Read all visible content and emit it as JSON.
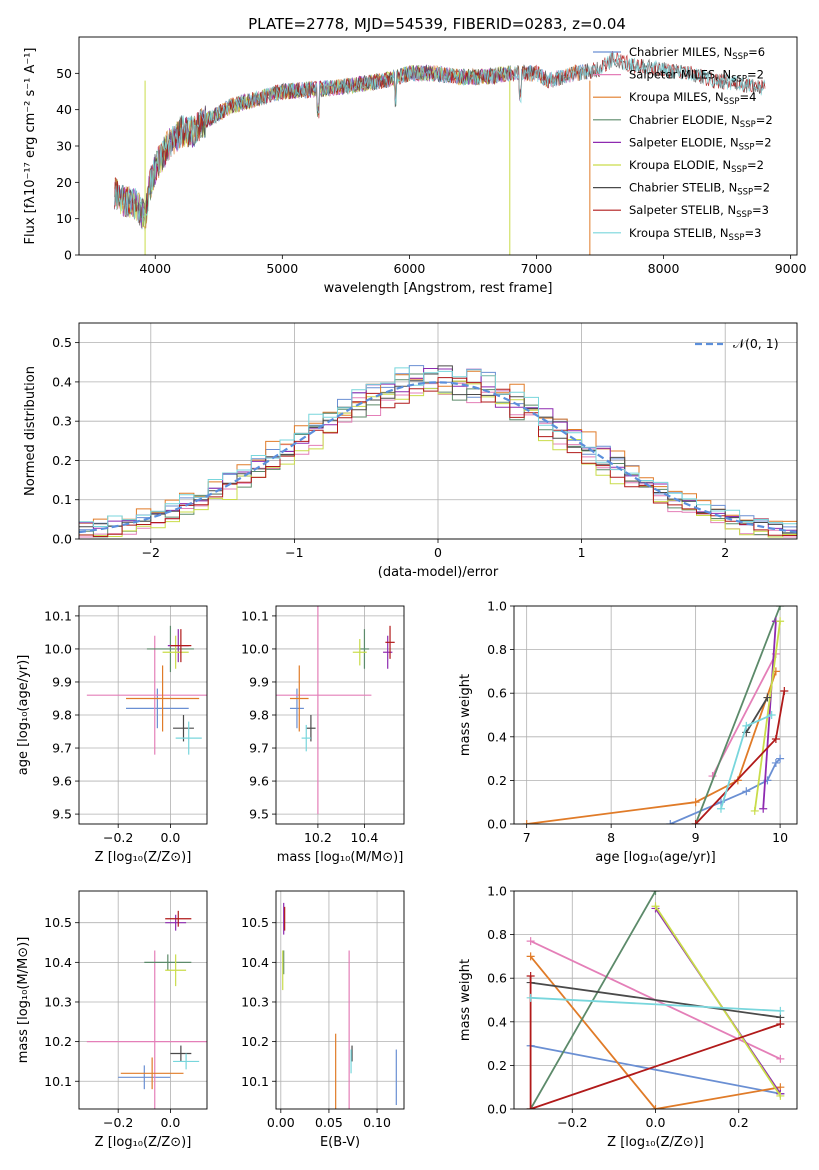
{
  "figure_title": "PLATE=2778, MJD=54539, FIBERID=0283, z=0.04",
  "colors": {
    "Chabrier MILES": "#6a8fd3",
    "Salpeter MILES": "#e47fb8",
    "Kroupa MILES": "#e07b28",
    "Chabrier ELODIE": "#5c8a6a",
    "Salpeter ELODIE": "#8e2ab0",
    "Kroupa ELODIE": "#c9dc4a",
    "Chabrier STELIB": "#4a4a4a",
    "Salpeter STELIB": "#b11a1a",
    "Kroupa STELIB": "#78d6dc"
  },
  "chart_data": [
    {
      "id": "spectrum",
      "type": "line",
      "title": "PLATE=2778, MJD=54539, FIBERID=0283, z=0.04",
      "xlabel": "wavelength [Angstrom, rest frame]",
      "ylabel": "Flux [fλ10⁻¹⁷ erg cm⁻² s⁻¹ A⁻¹]",
      "xlim": [
        3400,
        9050
      ],
      "ylim": [
        0,
        60
      ],
      "xticks": [
        4000,
        5000,
        6000,
        7000,
        8000,
        9000
      ],
      "yticks": [
        0,
        10,
        20,
        30,
        40,
        50
      ],
      "grid": false,
      "legend_position": "top-right",
      "legend": [
        {
          "label": "Chabrier MILES, N_SSP=6",
          "series": "Chabrier MILES"
        },
        {
          "label": "Salpeter MILES, N_SSP=2",
          "series": "Salpeter MILES"
        },
        {
          "label": "Kroupa MILES, N_SSP=4",
          "series": "Kroupa MILES"
        },
        {
          "label": "Chabrier ELODIE, N_SSP=2",
          "series": "Chabrier ELODIE"
        },
        {
          "label": "Salpeter ELODIE, N_SSP=2",
          "series": "Salpeter ELODIE"
        },
        {
          "label": "Kroupa ELODIE, N_SSP=2",
          "series": "Kroupa ELODIE"
        },
        {
          "label": "Chabrier STELIB, N_SSP=2",
          "series": "Chabrier STELIB"
        },
        {
          "label": "Salpeter STELIB, N_SSP=3",
          "series": "Salpeter STELIB"
        },
        {
          "label": "Kroupa STELIB, N_SSP=3",
          "series": "Kroupa STELIB"
        }
      ],
      "spectrum_shape": [
        [
          3680,
          17
        ],
        [
          3750,
          15
        ],
        [
          3850,
          14
        ],
        [
          3920,
          10
        ],
        [
          3950,
          18
        ],
        [
          4000,
          24
        ],
        [
          4100,
          30
        ],
        [
          4200,
          34
        ],
        [
          4300,
          34
        ],
        [
          4400,
          37
        ],
        [
          4600,
          41
        ],
        [
          4800,
          43
        ],
        [
          5000,
          45
        ],
        [
          5200,
          45.5
        ],
        [
          5400,
          46
        ],
        [
          5600,
          47
        ],
        [
          5800,
          48
        ],
        [
          6000,
          50
        ],
        [
          6200,
          50
        ],
        [
          6400,
          49
        ],
        [
          6600,
          49
        ],
        [
          6800,
          50
        ],
        [
          7000,
          50
        ],
        [
          7100,
          48
        ],
        [
          7300,
          50
        ],
        [
          7500,
          51
        ],
        [
          7600,
          54
        ],
        [
          7800,
          52
        ],
        [
          8000,
          51
        ],
        [
          8200,
          50
        ],
        [
          8400,
          48
        ],
        [
          8600,
          47
        ],
        [
          8800,
          46
        ]
      ],
      "spectrum_series_xmax": {
        "Chabrier MILES": 7400,
        "Salpeter MILES": 7400,
        "Kroupa MILES": 7400,
        "Chabrier ELODIE": 6800,
        "Salpeter ELODIE": 6800,
        "Kroupa ELODIE": 6800,
        "Chabrier STELIB": 8800,
        "Salpeter STELIB": 8800,
        "Kroupa STELIB": 8800
      },
      "drop_lines": [
        {
          "x": 3920,
          "series": "Kroupa ELODIE"
        },
        {
          "x": 6790,
          "series": "Kroupa ELODIE"
        },
        {
          "x": 7420,
          "series": "Kroupa MILES"
        }
      ]
    },
    {
      "id": "residuals",
      "type": "histogram",
      "xlabel": "(data-model)/error",
      "ylabel": "Normed distribution",
      "xlim": [
        -2.5,
        2.5
      ],
      "ylim": [
        0,
        0.55
      ],
      "xticks": [
        -2,
        -1,
        0,
        1,
        2
      ],
      "yticks": [
        0.0,
        0.1,
        0.2,
        0.3,
        0.4,
        0.5
      ],
      "grid": true,
      "legend_position": "top-right",
      "legend_label": "𝒩(0, 1)",
      "reference_curve": "normal pdf, mean 0, sigma 1",
      "bin_width": 0.1,
      "bin_start": -2.5,
      "series_offsets": [
        0.012,
        -0.015,
        0.02,
        -0.008,
        0.01,
        -0.02,
        0.005,
        -0.01,
        0.015
      ]
    },
    {
      "id": "age-vs-Z",
      "type": "scatter",
      "xlabel": "Z [log₁₀(Z/Z⊙)]",
      "ylabel": "age [log₁₀(age/yr)]",
      "xlim": [
        -0.35,
        0.14
      ],
      "ylim": [
        9.47,
        10.13
      ],
      "xticks": [
        -0.2,
        0.0
      ],
      "yticks": [
        9.5,
        9.6,
        9.7,
        9.8,
        9.9,
        10.0,
        10.1
      ],
      "grid": true,
      "points": [
        {
          "series": "Chabrier MILES",
          "x": -0.05,
          "y": 9.82,
          "xerr": 0.12,
          "yerr": 0.06
        },
        {
          "series": "Salpeter MILES",
          "x": -0.06,
          "y": 9.86,
          "xerr": 0.26,
          "yerr": 0.18
        },
        {
          "series": "Kroupa MILES",
          "x": -0.03,
          "y": 9.85,
          "xerr": 0.14,
          "yerr": 0.1
        },
        {
          "series": "Chabrier ELODIE",
          "x": 0.0,
          "y": 10.0,
          "xerr": 0.09,
          "yerr": 0.07
        },
        {
          "series": "Salpeter ELODIE",
          "x": 0.03,
          "y": 10.01,
          "xerr": 0.04,
          "yerr": 0.05
        },
        {
          "series": "Kroupa ELODIE",
          "x": 0.02,
          "y": 9.99,
          "xerr": 0.05,
          "yerr": 0.05
        },
        {
          "series": "Chabrier STELIB",
          "x": 0.05,
          "y": 9.76,
          "xerr": 0.04,
          "yerr": 0.04
        },
        {
          "series": "Salpeter STELIB",
          "x": 0.04,
          "y": 10.01,
          "xerr": 0.04,
          "yerr": 0.05
        },
        {
          "series": "Kroupa STELIB",
          "x": 0.07,
          "y": 9.73,
          "xerr": 0.05,
          "yerr": 0.05
        }
      ]
    },
    {
      "id": "age-vs-mass",
      "type": "scatter",
      "xlabel": "mass [log₁₀(M/M⊙)]",
      "ylabel": "",
      "xlim": [
        10.02,
        10.57
      ],
      "ylim": [
        9.47,
        10.13
      ],
      "xticks": [
        10.2,
        10.4
      ],
      "yticks": [
        9.5,
        9.6,
        9.7,
        9.8,
        9.9,
        10.0,
        10.1
      ],
      "grid": true,
      "points": [
        {
          "series": "Chabrier MILES",
          "x": 10.11,
          "y": 9.82,
          "xerr": 0.03,
          "yerr": 0.06
        },
        {
          "series": "Salpeter MILES",
          "x": 10.2,
          "y": 9.86,
          "xerr": 0.23,
          "yerr": 0.36
        },
        {
          "series": "Kroupa MILES",
          "x": 10.12,
          "y": 9.85,
          "xerr": 0.04,
          "yerr": 0.1
        },
        {
          "series": "Chabrier ELODIE",
          "x": 10.4,
          "y": 10.0,
          "xerr": 0.02,
          "yerr": 0.06
        },
        {
          "series": "Salpeter ELODIE",
          "x": 10.5,
          "y": 9.99,
          "xerr": 0.02,
          "yerr": 0.05
        },
        {
          "series": "Kroupa ELODIE",
          "x": 10.38,
          "y": 9.99,
          "xerr": 0.03,
          "yerr": 0.04
        },
        {
          "series": "Chabrier STELIB",
          "x": 10.17,
          "y": 9.76,
          "xerr": 0.02,
          "yerr": 0.04
        },
        {
          "series": "Salpeter STELIB",
          "x": 10.51,
          "y": 10.02,
          "xerr": 0.02,
          "yerr": 0.05
        },
        {
          "series": "Kroupa STELIB",
          "x": 10.15,
          "y": 9.73,
          "xerr": 0.02,
          "yerr": 0.04
        }
      ]
    },
    {
      "id": "weight-vs-age",
      "type": "line",
      "xlabel": "age [log₁₀(age/yr)]",
      "ylabel": "mass weight",
      "xlim": [
        6.85,
        10.2
      ],
      "ylim": [
        0,
        1
      ],
      "xticks": [
        7,
        8,
        9,
        10
      ],
      "yticks": [
        0.0,
        0.2,
        0.4,
        0.6,
        0.8,
        1.0
      ],
      "grid": true,
      "series": [
        {
          "series": "Chabrier MILES",
          "points": [
            [
              8.7,
              0.0
            ],
            [
              9.3,
              0.1
            ],
            [
              9.6,
              0.15
            ],
            [
              9.85,
              0.2
            ],
            [
              9.95,
              0.28
            ],
            [
              10.0,
              0.3
            ]
          ]
        },
        {
          "series": "Salpeter MILES",
          "points": [
            [
              9.2,
              0.22
            ],
            [
              9.95,
              0.78
            ]
          ]
        },
        {
          "series": "Kroupa MILES",
          "points": [
            [
              7.0,
              0.0
            ],
            [
              9.0,
              0.1
            ],
            [
              9.5,
              0.2
            ],
            [
              9.95,
              0.7
            ]
          ]
        },
        {
          "series": "Chabrier ELODIE",
          "points": [
            [
              9.0,
              0.0
            ],
            [
              10.0,
              1.0
            ]
          ]
        },
        {
          "series": "Salpeter ELODIE",
          "points": [
            [
              9.8,
              0.07
            ],
            [
              9.95,
              0.93
            ]
          ]
        },
        {
          "series": "Kroupa ELODIE",
          "points": [
            [
              9.7,
              0.06
            ],
            [
              10.0,
              0.93
            ]
          ]
        },
        {
          "series": "Chabrier STELIB",
          "points": [
            [
              9.6,
              0.42
            ],
            [
              9.85,
              0.58
            ]
          ]
        },
        {
          "series": "Salpeter STELIB",
          "points": [
            [
              9.0,
              0.0
            ],
            [
              9.95,
              0.39
            ],
            [
              10.05,
              0.61
            ]
          ]
        },
        {
          "series": "Kroupa STELIB",
          "points": [
            [
              9.3,
              0.07
            ],
            [
              9.6,
              0.45
            ],
            [
              9.9,
              0.5
            ]
          ]
        }
      ]
    },
    {
      "id": "mass-vs-Z",
      "type": "scatter",
      "xlabel": "Z [log₁₀(Z/Z⊙)]",
      "ylabel": "mass [log₁₀(M/M⊙)]",
      "xlim": [
        -0.35,
        0.14
      ],
      "ylim": [
        10.03,
        10.58
      ],
      "xticks": [
        -0.2,
        0.0
      ],
      "yticks": [
        10.1,
        10.2,
        10.3,
        10.4,
        10.5
      ],
      "grid": true,
      "points": [
        {
          "series": "Chabrier MILES",
          "x": -0.1,
          "y": 10.11,
          "xerr": 0.1,
          "yerr": 0.03
        },
        {
          "series": "Salpeter MILES",
          "x": -0.06,
          "y": 10.2,
          "xerr": 0.26,
          "yerr": 0.23
        },
        {
          "series": "Kroupa MILES",
          "x": -0.07,
          "y": 10.12,
          "xerr": 0.12,
          "yerr": 0.04
        },
        {
          "series": "Chabrier ELODIE",
          "x": -0.01,
          "y": 10.4,
          "xerr": 0.09,
          "yerr": 0.02
        },
        {
          "series": "Salpeter ELODIE",
          "x": 0.02,
          "y": 10.5,
          "xerr": 0.04,
          "yerr": 0.02
        },
        {
          "series": "Kroupa ELODIE",
          "x": 0.02,
          "y": 10.38,
          "xerr": 0.04,
          "yerr": 0.04
        },
        {
          "series": "Chabrier STELIB",
          "x": 0.04,
          "y": 10.17,
          "xerr": 0.04,
          "yerr": 0.02
        },
        {
          "series": "Salpeter STELIB",
          "x": 0.03,
          "y": 10.51,
          "xerr": 0.05,
          "yerr": 0.02
        },
        {
          "series": "Kroupa STELIB",
          "x": 0.06,
          "y": 10.15,
          "xerr": 0.05,
          "yerr": 0.02
        }
      ]
    },
    {
      "id": "mass-vs-ebv",
      "type": "scatter",
      "xlabel": "E(B-V)",
      "ylabel": "",
      "xlim": [
        -0.005,
        0.128
      ],
      "ylim": [
        10.03,
        10.58
      ],
      "xticks": [
        0.0,
        0.05,
        0.1
      ],
      "yticks": [
        10.1,
        10.2,
        10.3,
        10.4,
        10.5
      ],
      "grid": true,
      "points": [
        {
          "series": "Chabrier MILES",
          "x": 0.12,
          "y": 10.11,
          "xerr": 0.0,
          "yerr": 0.07
        },
        {
          "series": "Salpeter MILES",
          "x": 0.071,
          "y": 10.2,
          "xerr": 0.0,
          "yerr": 0.23
        },
        {
          "series": "Kroupa MILES",
          "x": 0.057,
          "y": 10.12,
          "xerr": 0.0,
          "yerr": 0.1
        },
        {
          "series": "Chabrier ELODIE",
          "x": 0.003,
          "y": 10.4,
          "xerr": 0.0,
          "yerr": 0.03
        },
        {
          "series": "Salpeter ELODIE",
          "x": 0.003,
          "y": 10.51,
          "xerr": 0.0,
          "yerr": 0.04
        },
        {
          "series": "Kroupa ELODIE",
          "x": 0.002,
          "y": 10.38,
          "xerr": 0.0,
          "yerr": 0.05
        },
        {
          "series": "Chabrier STELIB",
          "x": 0.074,
          "y": 10.17,
          "xerr": 0.0,
          "yerr": 0.02
        },
        {
          "series": "Salpeter STELIB",
          "x": 0.004,
          "y": 10.51,
          "xerr": 0.0,
          "yerr": 0.03
        },
        {
          "series": "Kroupa STELIB",
          "x": 0.073,
          "y": 10.15,
          "xerr": 0.0,
          "yerr": 0.03
        }
      ]
    },
    {
      "id": "weight-vs-Z",
      "type": "line",
      "xlabel": "Z [log₁₀(Z/Z⊙)]",
      "ylabel": "mass weight",
      "xlim": [
        -0.34,
        0.34
      ],
      "ylim": [
        0,
        1
      ],
      "xticks": [
        -0.2,
        0.0,
        0.2
      ],
      "yticks": [
        0.0,
        0.2,
        0.4,
        0.6,
        0.8,
        1.0
      ],
      "grid": true,
      "series": [
        {
          "series": "Chabrier MILES",
          "points": [
            [
              -0.3,
              0.29
            ],
            [
              0.3,
              0.07
            ]
          ]
        },
        {
          "series": "Salpeter MILES",
          "points": [
            [
              -0.3,
              0.77
            ],
            [
              0.3,
              0.23
            ]
          ]
        },
        {
          "series": "Kroupa MILES",
          "points": [
            [
              -0.3,
              0.7
            ],
            [
              0.0,
              0.0
            ],
            [
              0.3,
              0.1
            ]
          ]
        },
        {
          "series": "Chabrier ELODIE",
          "points": [
            [
              -0.3,
              0.0
            ],
            [
              0.0,
              1.0
            ]
          ]
        },
        {
          "series": "Salpeter ELODIE",
          "points": [
            [
              0.0,
              0.92
            ],
            [
              0.3,
              0.07
            ]
          ]
        },
        {
          "series": "Kroupa ELODIE",
          "points": [
            [
              0.0,
              0.93
            ],
            [
              0.3,
              0.06
            ]
          ]
        },
        {
          "series": "Chabrier STELIB",
          "points": [
            [
              -0.3,
              0.58
            ],
            [
              0.3,
              0.42
            ]
          ]
        },
        {
          "series": "Salpeter STELIB",
          "points": [
            [
              -0.3,
              0.61
            ],
            [
              -0.3,
              0.0
            ],
            [
              0.3,
              0.39
            ]
          ]
        },
        {
          "series": "Kroupa STELIB",
          "points": [
            [
              -0.3,
              0.51
            ],
            [
              0.3,
              0.45
            ]
          ]
        }
      ]
    }
  ]
}
